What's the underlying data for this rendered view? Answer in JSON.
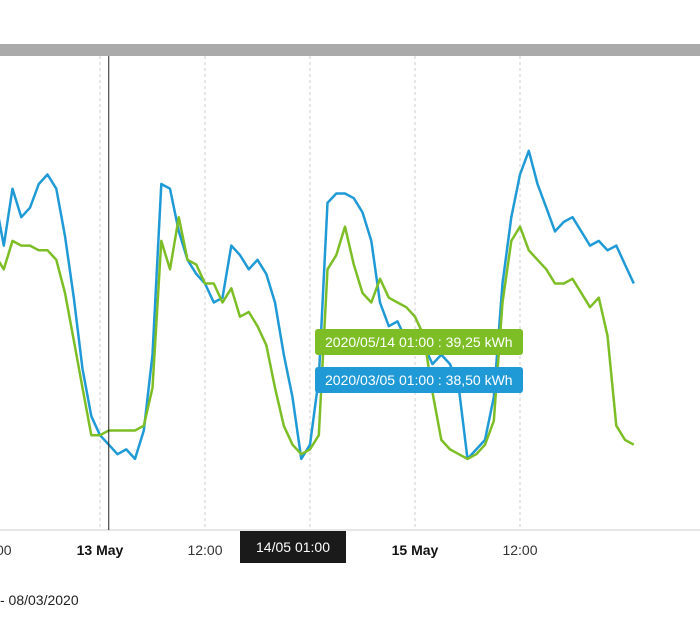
{
  "chart_data": {
    "type": "line",
    "x_unit": "hours since 12 May 12:00",
    "ylim": [
      0,
      100
    ],
    "series": [
      {
        "color": "#1f9ad6",
        "values": [
          70,
          60,
          72,
          66,
          68,
          73,
          75,
          72,
          62,
          49,
          34,
          24,
          20,
          18,
          16,
          17,
          15,
          21,
          37,
          73,
          72,
          63,
          57,
          54,
          52,
          48,
          49,
          60,
          58,
          55,
          57,
          54,
          48,
          37,
          28,
          15,
          18,
          32,
          69,
          71,
          71,
          70,
          67,
          61,
          48,
          43,
          44,
          40,
          38,
          39,
          35,
          37,
          35,
          30,
          15,
          17,
          19,
          28,
          52,
          66,
          75,
          80,
          73,
          68,
          63,
          65,
          66,
          63,
          60,
          61,
          59,
          60,
          56,
          52
        ]
      },
      {
        "color": "#7dbe27",
        "values": [
          58,
          55,
          61,
          60,
          60,
          59,
          59,
          57,
          50,
          40,
          30,
          20,
          20,
          21,
          21,
          21,
          21,
          22,
          30,
          61,
          55,
          66,
          57,
          56,
          52,
          52,
          48,
          51,
          45,
          46,
          43,
          39,
          30,
          22,
          18,
          16,
          17,
          20,
          55,
          58,
          64,
          56,
          50,
          48,
          53,
          49,
          48,
          47,
          45,
          41,
          29,
          19,
          17,
          16,
          15,
          16,
          18,
          23,
          48,
          61,
          64,
          59,
          57,
          55,
          52,
          52,
          53,
          50,
          47,
          49,
          41,
          22,
          19,
          18
        ]
      }
    ],
    "x_ticks": [
      "00",
      "13 May",
      "12:00",
      "12:00",
      "15 May",
      "12:00"
    ],
    "x_ticks_bold": [
      false,
      true,
      false,
      false,
      true,
      false
    ],
    "cursor_x": 13,
    "tooltips": {
      "green": "2020/05/14 01:00 : 39,25 kWh",
      "blue": "2020/03/05 01:00 : 38,50 kWh"
    },
    "cursor_label": "14/05 01:00"
  },
  "footer": "- 08/03/2020"
}
